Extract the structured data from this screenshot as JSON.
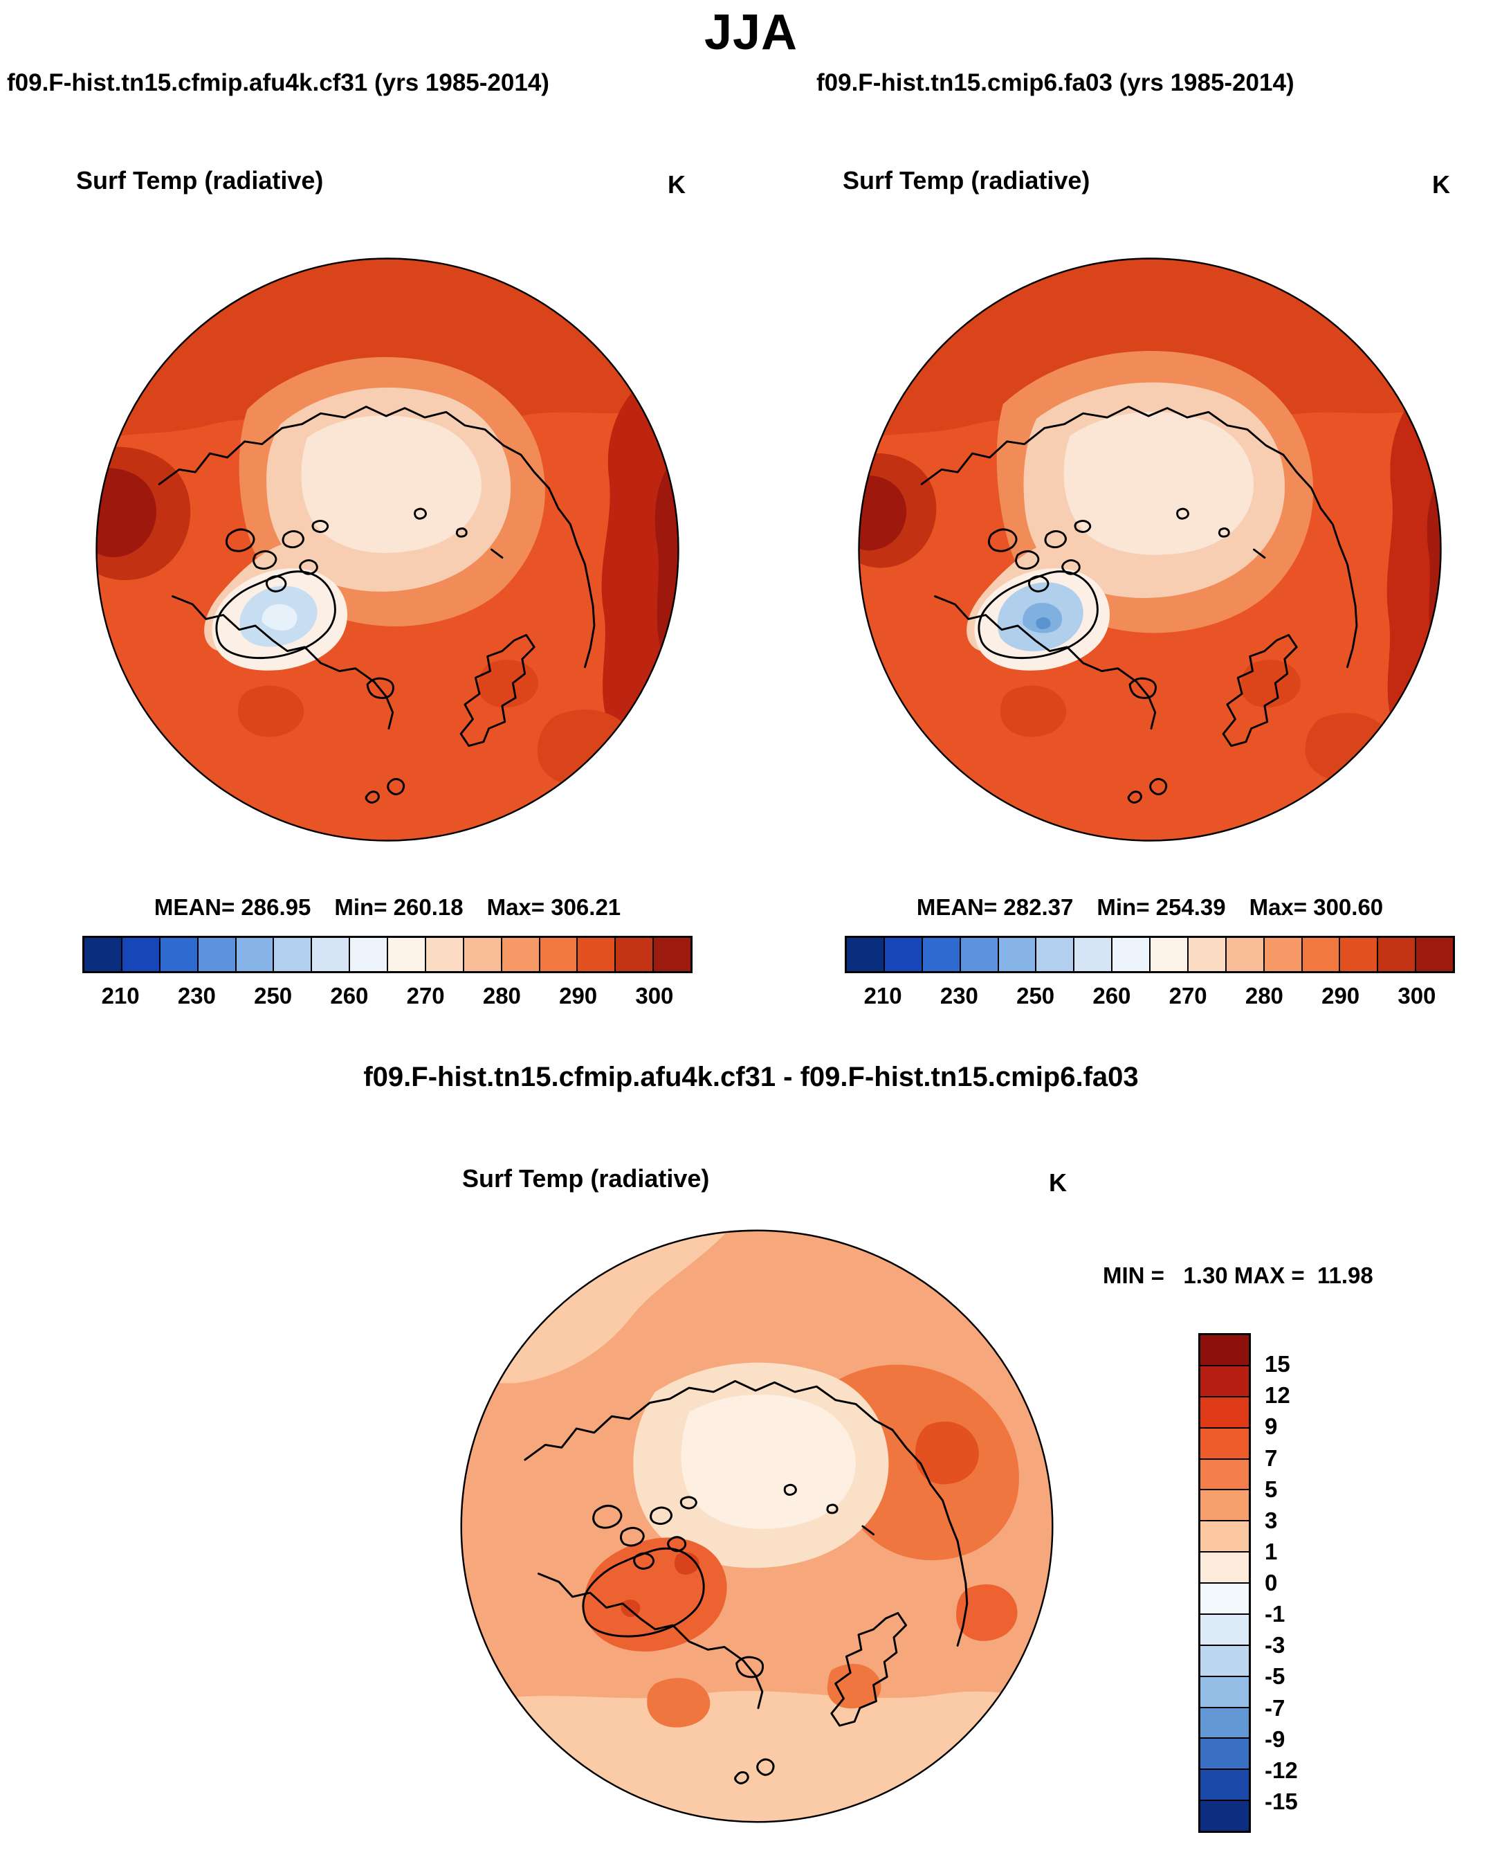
{
  "page": {
    "title": "JJA"
  },
  "left_panel": {
    "subtitle": "f09.F-hist.tn15.cfmip.afu4k.cf31 (yrs 1985-2014)",
    "field_label": "Surf Temp (radiative)",
    "units": "K",
    "stats": {
      "mean": "MEAN= 286.95",
      "min": "Min= 260.18",
      "max": "Max= 306.21"
    }
  },
  "right_panel": {
    "subtitle": "f09.F-hist.tn15.cmip6.fa03 (yrs 1985-2014)",
    "field_label": "Surf Temp (radiative)",
    "units": "K",
    "stats": {
      "mean": "MEAN= 282.37",
      "min": "Min= 254.39",
      "max": "Max= 300.60"
    }
  },
  "diff_panel": {
    "title": "f09.F-hist.tn15.cfmip.afu4k.cf31 - f09.F-hist.tn15.cmip6.fa03",
    "field_label": "Surf Temp (radiative)",
    "units": "K",
    "minmax": "MIN =   1.30 MAX =  11.98"
  },
  "colorbar_abs": {
    "labels": [
      "210",
      "230",
      "250",
      "260",
      "270",
      "280",
      "290",
      "300"
    ],
    "colors": [
      "#0a2e7e",
      "#1746b8",
      "#2f6ad0",
      "#5b93de",
      "#87b4e8",
      "#b3cff0",
      "#d6e5f6",
      "#edf4fb",
      "#fdf3e8",
      "#fbdcc2",
      "#f8bd96",
      "#f59a66",
      "#f1783e",
      "#e2511f",
      "#c33415",
      "#9c1a0e"
    ]
  },
  "colorbar_diff": {
    "labels": [
      "15",
      "12",
      "9",
      "7",
      "5",
      "3",
      "1",
      "0",
      "-1",
      "-3",
      "-5",
      "-7",
      "-9",
      "-12",
      "-15"
    ],
    "colors": [
      "#8d100c",
      "#b51e10",
      "#de3a18",
      "#ee5c2c",
      "#f47e4a",
      "#f7a06e",
      "#fbc8a2",
      "#fcebdb",
      "#f2f8fc",
      "#dcebf7",
      "#bcd7ef",
      "#93bde4",
      "#6298d4",
      "#3a70c4",
      "#1b49aa",
      "#0c2d80"
    ]
  },
  "chart_data": [
    {
      "type": "heatmap",
      "projection": "north_polar_stereographic",
      "season": "JJA",
      "title": "Surf Temp (radiative)",
      "run": "f09.F-hist.tn15.cfmip.afu4k.cf31",
      "years": "1985-2014",
      "units": "K",
      "stats": {
        "mean": 286.95,
        "min": 260.18,
        "max": 306.21
      },
      "colorbar_ticks": [
        210,
        230,
        250,
        260,
        270,
        280,
        290,
        300
      ],
      "legend_position": "bottom"
    },
    {
      "type": "heatmap",
      "projection": "north_polar_stereographic",
      "season": "JJA",
      "title": "Surf Temp (radiative)",
      "run": "f09.F-hist.tn15.cmip6.fa03",
      "years": "1985-2014",
      "units": "K",
      "stats": {
        "mean": 282.37,
        "min": 254.39,
        "max": 300.6
      },
      "colorbar_ticks": [
        210,
        230,
        250,
        260,
        270,
        280,
        290,
        300
      ],
      "legend_position": "bottom"
    },
    {
      "type": "heatmap",
      "projection": "north_polar_stereographic",
      "season": "JJA",
      "title": "Surf Temp (radiative)",
      "run": "f09.F-hist.tn15.cfmip.afu4k.cf31 - f09.F-hist.tn15.cmip6.fa03",
      "units": "K",
      "stats": {
        "min": 1.3,
        "max": 11.98
      },
      "colorbar_ticks": [
        15,
        12,
        9,
        7,
        5,
        3,
        1,
        0,
        -1,
        -3,
        -5,
        -7,
        -9,
        -12,
        -15
      ],
      "legend_position": "right"
    }
  ]
}
